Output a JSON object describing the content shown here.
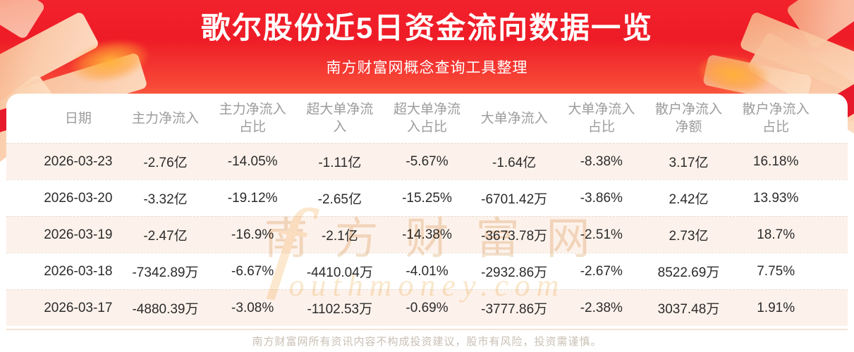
{
  "banner": {
    "title": "歌尔股份近5日资金流向数据一览",
    "subtitle": "南方财富网概念查询工具整理"
  },
  "table": {
    "headers": [
      "日期",
      "主力净流入",
      "主力净流入\n占比",
      "超大单净流\n入",
      "超大单净流\n入占比",
      "大单净流入",
      "大单净流入\n占比",
      "散户净流入\n净额",
      "散户净流入\n占比"
    ],
    "rows": [
      [
        "2026-03-23",
        "-2.76亿",
        "-14.05%",
        "-1.11亿",
        "-5.67%",
        "-1.64亿",
        "-8.38%",
        "3.17亿",
        "16.18%"
      ],
      [
        "2026-03-20",
        "-3.32亿",
        "-19.12%",
        "-2.65亿",
        "-15.25%",
        "-6701.42万",
        "-3.86%",
        "2.42亿",
        "13.93%"
      ],
      [
        "2026-03-19",
        "-2.47亿",
        "-16.9%",
        "-2.1亿",
        "-14.38%",
        "-3673.78万",
        "-2.51%",
        "2.73亿",
        "18.7%"
      ],
      [
        "2026-03-18",
        "-7342.89万",
        "-6.67%",
        "-4410.04万",
        "-4.01%",
        "-2932.86万",
        "-2.67%",
        "8522.69万",
        "7.75%"
      ],
      [
        "2026-03-17",
        "-4880.39万",
        "-3.08%",
        "-1102.53万",
        "-0.69%",
        "-3777.86万",
        "-2.38%",
        "3037.48万",
        "1.91%"
      ]
    ]
  },
  "watermark": {
    "line1": "南方财富网",
    "line2": "outhmoney.com",
    "swirl": "f"
  },
  "footer": {
    "disclaimer": "南方财富网所有资讯内容不构成投资建议，股市有风险，投资需谨慎。"
  },
  "colors": {
    "banner_top": "#f2222d",
    "banner_bottom": "#ff8a5e",
    "ribbon_red": "#e7182a",
    "deco_peach": "#f8bd96",
    "row_alt_bg": "#fdf2eb",
    "header_text": "#9c9c9c",
    "cell_text": "#2b2b2b",
    "watermark_text": "#f0d9bd",
    "footer_text": "#c8bfb3"
  },
  "chart_data": {
    "type": "table",
    "title": "歌尔股份近5日资金流向数据一览",
    "subtitle": "南方财富网概念查询工具整理",
    "columns": [
      "日期",
      "主力净流入",
      "主力净流入占比",
      "超大单净流入",
      "超大单净流入占比",
      "大单净流入",
      "大单净流入占比",
      "散户净流入净额",
      "散户净流入占比"
    ],
    "rows": [
      [
        "2026-03-23",
        "-2.76亿",
        "-14.05%",
        "-1.11亿",
        "-5.67%",
        "-1.64亿",
        "-8.38%",
        "3.17亿",
        "16.18%"
      ],
      [
        "2026-03-20",
        "-3.32亿",
        "-19.12%",
        "-2.65亿",
        "-15.25%",
        "-6701.42万",
        "-3.86%",
        "2.42亿",
        "13.93%"
      ],
      [
        "2026-03-19",
        "-2.47亿",
        "-16.9%",
        "-2.1亿",
        "-14.38%",
        "-3673.78万",
        "-2.51%",
        "2.73亿",
        "18.7%"
      ],
      [
        "2026-03-18",
        "-7342.89万",
        "-6.67%",
        "-4410.04万",
        "-4.01%",
        "-2932.86万",
        "-2.67%",
        "8522.69万",
        "7.75%"
      ],
      [
        "2026-03-17",
        "-4880.39万",
        "-3.08%",
        "-1102.53万",
        "-0.69%",
        "-3777.86万",
        "-2.38%",
        "3037.48万",
        "1.91%"
      ]
    ]
  }
}
